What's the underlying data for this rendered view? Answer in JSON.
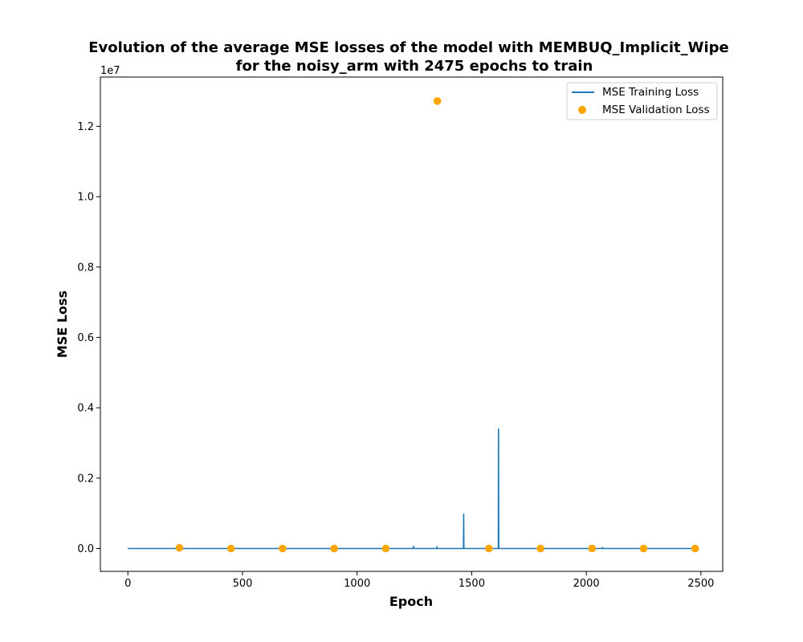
{
  "chart_data": {
    "type": "line",
    "title_lines": [
      "Evolution of the average MSE losses of the model with MEMBUQ_Implicit_Wipe",
      "for the noisy_arm with 2475 epochs to train"
    ],
    "xlabel": "Epoch",
    "ylabel": "MSE Loss",
    "y_offset_label": "1e7",
    "xlim": [
      -120,
      2595
    ],
    "ylim": [
      -0.065,
      1.34
    ],
    "y_units_multiplier": 10000000,
    "x_ticks": [
      0,
      500,
      1000,
      1500,
      2000,
      2500
    ],
    "x_tick_labels": [
      "0",
      "500",
      "1000",
      "1500",
      "2000",
      "2500"
    ],
    "y_ticks": [
      0.0,
      0.2,
      0.4,
      0.6,
      0.8,
      1.0,
      1.2
    ],
    "y_tick_labels": [
      "0.0",
      "0.2",
      "0.4",
      "0.6",
      "0.8",
      "1.0",
      "1.2"
    ],
    "legend_position": "top-right",
    "series": [
      {
        "name": "MSE Training Loss",
        "kind": "line",
        "color": "#1f77b4",
        "x": [
          0,
          1245,
          1246,
          1247,
          1347,
          1348,
          1349,
          1464,
          1465,
          1466,
          1616,
          1617,
          1618,
          2070,
          2071,
          2072,
          2475
        ],
        "y": [
          0,
          0,
          0.006,
          0,
          0,
          0.005,
          0,
          0,
          0.098,
          0,
          0,
          0.34,
          0,
          0,
          0.003,
          0,
          0
        ]
      },
      {
        "name": "MSE Validation Loss",
        "kind": "scatter",
        "color": "#ffa500",
        "x": [
          225,
          450,
          675,
          900,
          1125,
          1350,
          1575,
          1800,
          2025,
          2250,
          2475
        ],
        "y": [
          0.002,
          0,
          0,
          0,
          0,
          1.272,
          0,
          0,
          0,
          0,
          0
        ]
      }
    ]
  }
}
